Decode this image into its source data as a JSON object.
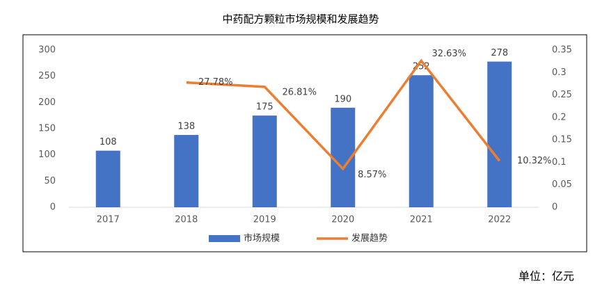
{
  "chart_data": {
    "type": "bar_line",
    "title": "中药配方颗粒市场规模和发展趋势",
    "unit_note": "单位：亿元",
    "categories": [
      "2017",
      "2018",
      "2019",
      "2020",
      "2021",
      "2022"
    ],
    "series": [
      {
        "name": "市场规模",
        "color": "#4472c4",
        "type": "bar",
        "values": [
          108,
          138,
          175,
          190,
          252,
          278
        ]
      },
      {
        "name": "发展趋势",
        "color": "#ed7d31",
        "type": "line",
        "axis": "y2",
        "values": [
          null,
          0.2778,
          0.2681,
          0.0857,
          0.3263,
          0.1032
        ],
        "value_labels": [
          null,
          "27.78%",
          "26.81%",
          "8.57%",
          "32.63%",
          "10.32%"
        ]
      }
    ],
    "ylim": [
      0,
      300
    ],
    "yticks": [
      0,
      50,
      100,
      150,
      200,
      250,
      300
    ],
    "y2lim": [
      0,
      0.35
    ],
    "y2ticks": [
      0,
      0.05,
      0.1,
      0.15,
      0.2,
      0.25,
      0.3,
      0.35
    ],
    "grid": false,
    "legend": "bottom"
  }
}
